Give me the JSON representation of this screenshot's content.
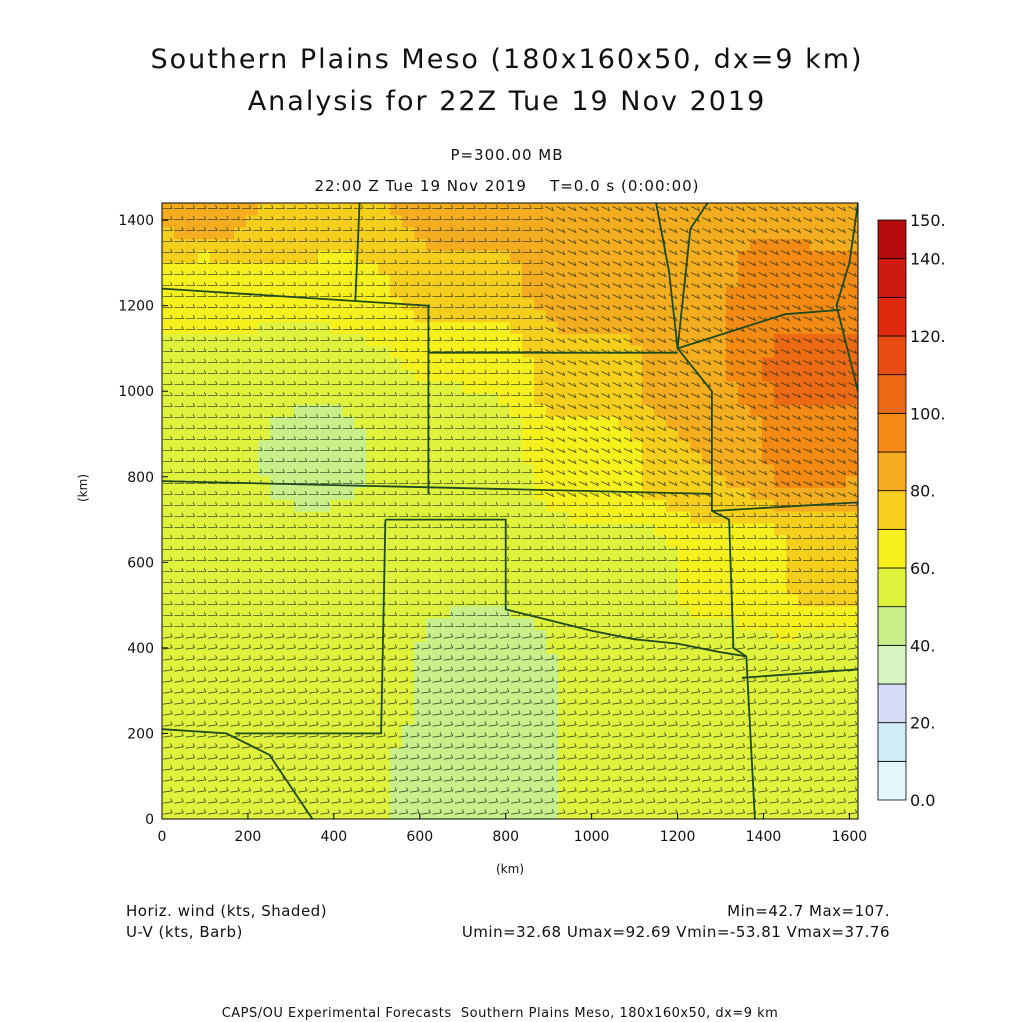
{
  "header": {
    "title_line1": "Southern Plains Meso (180x160x50, dx=9 km)",
    "title_line2": "Analysis for 22Z Tue 19 Nov 2019",
    "level": "P=300.00 MB",
    "time": "22:00 Z Tue 19 Nov 2019    T=0.0 s (0:00:00)"
  },
  "footer": {
    "field_shaded": "Horiz. wind (kts, Shaded)",
    "field_barb": "U-V (kts, Barb)",
    "minmax": "Min=42.7 Max=107.",
    "uv_stats": "Umin=32.68 Umax=92.69 Vmin=-53.81 Vmax=37.76",
    "credit": "CAPS/OU Experimental Forecasts  Southern Plains Meso, 180x160x50, dx=9 km"
  },
  "chart_data": {
    "type": "heatmap",
    "xlabel": "(km)",
    "ylabel": "(km)",
    "xlim": [
      0,
      1620
    ],
    "ylim": [
      0,
      1440
    ],
    "x_ticks": [
      0,
      200,
      400,
      600,
      800,
      1000,
      1200,
      1400,
      1600
    ],
    "y_ticks": [
      0,
      200,
      400,
      600,
      800,
      1000,
      1200,
      1400
    ],
    "colorbar": {
      "levels": [
        0,
        10,
        20,
        30,
        40,
        50,
        60,
        70,
        80,
        90,
        100,
        110,
        120,
        130,
        140,
        150
      ],
      "labels": [
        "0.0",
        "20.",
        "40.",
        "60.",
        "80.",
        "100.",
        "120.",
        "140.",
        "150."
      ],
      "label_values": [
        0,
        20,
        40,
        60,
        80,
        100,
        120,
        140,
        150
      ],
      "colors": [
        "#e4f6fb",
        "#d0ecf6",
        "#d6dcf6",
        "#d8f5c2",
        "#c8ef8a",
        "#dff33c",
        "#f6f01c",
        "#f6cf1c",
        "#f5ad20",
        "#f28a14",
        "#ec6a14",
        "#e84c12",
        "#e02a10",
        "#cf1a10",
        "#b40c0c"
      ]
    },
    "field_description": "Horizontal wind speed (kts) shaded, wind barbs overlaid",
    "speed_samples": [
      {
        "x": 100,
        "y": 100,
        "v": 55
      },
      {
        "x": 350,
        "y": 100,
        "v": 52
      },
      {
        "x": 700,
        "y": 100,
        "v": 48
      },
      {
        "x": 1000,
        "y": 100,
        "v": 50
      },
      {
        "x": 1300,
        "y": 100,
        "v": 52
      },
      {
        "x": 1580,
        "y": 100,
        "v": 55
      },
      {
        "x": 100,
        "y": 350,
        "v": 57
      },
      {
        "x": 400,
        "y": 350,
        "v": 53
      },
      {
        "x": 750,
        "y": 350,
        "v": 48
      },
      {
        "x": 1050,
        "y": 350,
        "v": 50
      },
      {
        "x": 1300,
        "y": 350,
        "v": 56
      },
      {
        "x": 1580,
        "y": 350,
        "v": 58
      },
      {
        "x": 100,
        "y": 600,
        "v": 55
      },
      {
        "x": 400,
        "y": 600,
        "v": 52
      },
      {
        "x": 800,
        "y": 600,
        "v": 50
      },
      {
        "x": 1100,
        "y": 600,
        "v": 58
      },
      {
        "x": 1350,
        "y": 600,
        "v": 68
      },
      {
        "x": 1580,
        "y": 600,
        "v": 74
      },
      {
        "x": 100,
        "y": 850,
        "v": 52
      },
      {
        "x": 350,
        "y": 850,
        "v": 48
      },
      {
        "x": 700,
        "y": 850,
        "v": 52
      },
      {
        "x": 1000,
        "y": 850,
        "v": 66
      },
      {
        "x": 1250,
        "y": 850,
        "v": 80
      },
      {
        "x": 1500,
        "y": 850,
        "v": 92
      },
      {
        "x": 100,
        "y": 1050,
        "v": 56
      },
      {
        "x": 350,
        "y": 1050,
        "v": 50
      },
      {
        "x": 700,
        "y": 1050,
        "v": 60
      },
      {
        "x": 1000,
        "y": 1050,
        "v": 76
      },
      {
        "x": 1250,
        "y": 1050,
        "v": 90
      },
      {
        "x": 1520,
        "y": 1050,
        "v": 105
      },
      {
        "x": 100,
        "y": 1250,
        "v": 68
      },
      {
        "x": 400,
        "y": 1250,
        "v": 68
      },
      {
        "x": 700,
        "y": 1250,
        "v": 76
      },
      {
        "x": 1000,
        "y": 1250,
        "v": 86
      },
      {
        "x": 1250,
        "y": 1250,
        "v": 90
      },
      {
        "x": 1550,
        "y": 1250,
        "v": 92
      },
      {
        "x": 100,
        "y": 1420,
        "v": 82
      },
      {
        "x": 400,
        "y": 1420,
        "v": 80
      },
      {
        "x": 700,
        "y": 1420,
        "v": 84
      },
      {
        "x": 1000,
        "y": 1420,
        "v": 88
      },
      {
        "x": 1300,
        "y": 1420,
        "v": 90
      },
      {
        "x": 1580,
        "y": 1420,
        "v": 88
      }
    ],
    "boundaries": [
      [
        [
          0,
          1240
        ],
        [
          620,
          1200
        ],
        [
          620,
          760
        ]
      ],
      [
        [
          620,
          1090
        ],
        [
          1200,
          1090
        ]
      ],
      [
        [
          460,
          1440
        ],
        [
          450,
          1210
        ]
      ],
      [
        [
          0,
          790
        ],
        [
          1280,
          760
        ]
      ],
      [
        [
          520,
          700
        ],
        [
          800,
          700
        ],
        [
          800,
          490
        ],
        [
          1000,
          440
        ],
        [
          1100,
          420
        ],
        [
          1200,
          410
        ],
        [
          1300,
          390
        ],
        [
          1360,
          380
        ]
      ],
      [
        [
          520,
          700
        ],
        [
          510,
          200
        ],
        [
          170,
          200
        ]
      ],
      [
        [
          0,
          210
        ],
        [
          150,
          200
        ],
        [
          250,
          150
        ],
        [
          350,
          0
        ]
      ],
      [
        [
          1270,
          1440
        ],
        [
          1230,
          1380
        ],
        [
          1200,
          1100
        ],
        [
          1280,
          1000
        ],
        [
          1280,
          720
        ],
        [
          1320,
          700
        ],
        [
          1330,
          400
        ],
        [
          1360,
          380
        ],
        [
          1380,
          0
        ]
      ],
      [
        [
          1280,
          720
        ],
        [
          1620,
          740
        ]
      ],
      [
        [
          1350,
          330
        ],
        [
          1620,
          350
        ]
      ],
      [
        [
          1150,
          1440
        ],
        [
          1180,
          1280
        ],
        [
          1200,
          1100
        ],
        [
          1450,
          1180
        ],
        [
          1580,
          1190
        ]
      ],
      [
        [
          1620,
          1440
        ],
        [
          1600,
          1300
        ],
        [
          1570,
          1200
        ],
        [
          1620,
          1000
        ]
      ]
    ]
  }
}
